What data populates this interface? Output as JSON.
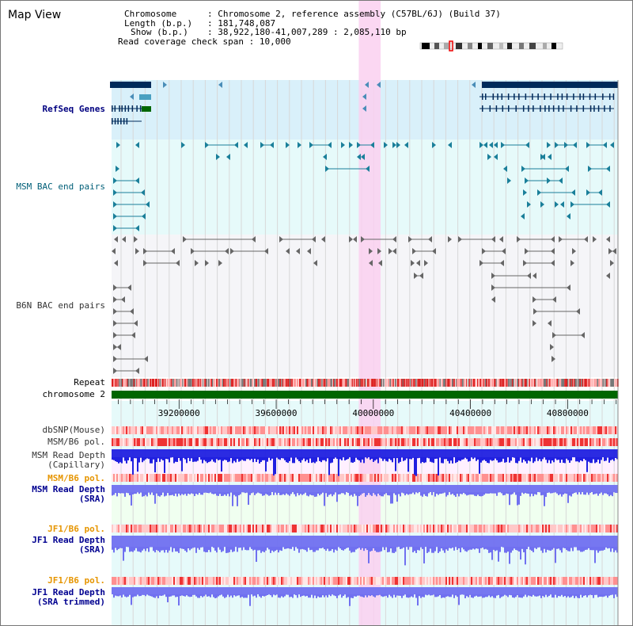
{
  "app": {
    "title": "Map View"
  },
  "info": {
    "chromosome_label": "Chromosome",
    "chromosome_value": "Chromosome 2, reference assembly (C57BL/6J) (Build 37)",
    "length_label": "Length (b.p.)",
    "length_value": "181,748,087",
    "show_label": "Show (b.p.)",
    "show_value": "38,922,180-41,007,289 : 2,085,110 bp",
    "coverage_label": "Read coverage check span",
    "coverage_value": "10,000"
  },
  "tracks": {
    "refseq": "RefSeq Genes",
    "msm_bac": "MSM BAC end pairs",
    "b6n_bac": "B6N BAC end pairs",
    "repeat": "Repeat",
    "chromosome": "chromosome 2",
    "dbsnp": "dbSNP(Mouse)",
    "msm_pol1": "MSM/B6 pol.",
    "msm_rd_cap_1": "MSM Read Depth",
    "msm_rd_cap_2": "(Capillary)",
    "msm_pol2": "MSM/B6 pol.",
    "msm_rd_sra_1": "MSM Read Depth",
    "msm_rd_sra_2": "(SRA)",
    "jf1_pol1": "JF1/B6 pol.",
    "jf1_rd_sra_1": "JF1 Read Depth",
    "jf1_rd_sra_2": "(SRA)",
    "jf1_pol2": "JF1/B6 pol.",
    "jf1_rd_trim_1": "JF1 Read Depth",
    "jf1_rd_trim_2": "(SRA trimmed)"
  },
  "axis": {
    "ticks": [
      {
        "value": 39200000,
        "label": "39200000"
      },
      {
        "value": 39600000,
        "label": "39600000"
      },
      {
        "value": 40000000,
        "label": "40000000"
      },
      {
        "value": 40400000,
        "label": "40400000"
      },
      {
        "value": 40800000,
        "label": "40800000"
      }
    ],
    "view_start": 38922180,
    "view_end": 41007289,
    "highlight_start": 39940000,
    "highlight_end": 40030000
  },
  "colors": {
    "refseq_bg": "#d9f0fa",
    "msm_bg": "#e6fafa",
    "b6n_bg": "#f5f5f8",
    "highlight": "#fad0f0",
    "chromosome": "#006600",
    "gene_dark": "#002a5a",
    "gene_green": "#006600",
    "msm_feature": "#1a7f9a",
    "b6n_feature": "#666666",
    "depth_blue": "#2020e0",
    "depth_lightblue": "#7070f0"
  }
}
